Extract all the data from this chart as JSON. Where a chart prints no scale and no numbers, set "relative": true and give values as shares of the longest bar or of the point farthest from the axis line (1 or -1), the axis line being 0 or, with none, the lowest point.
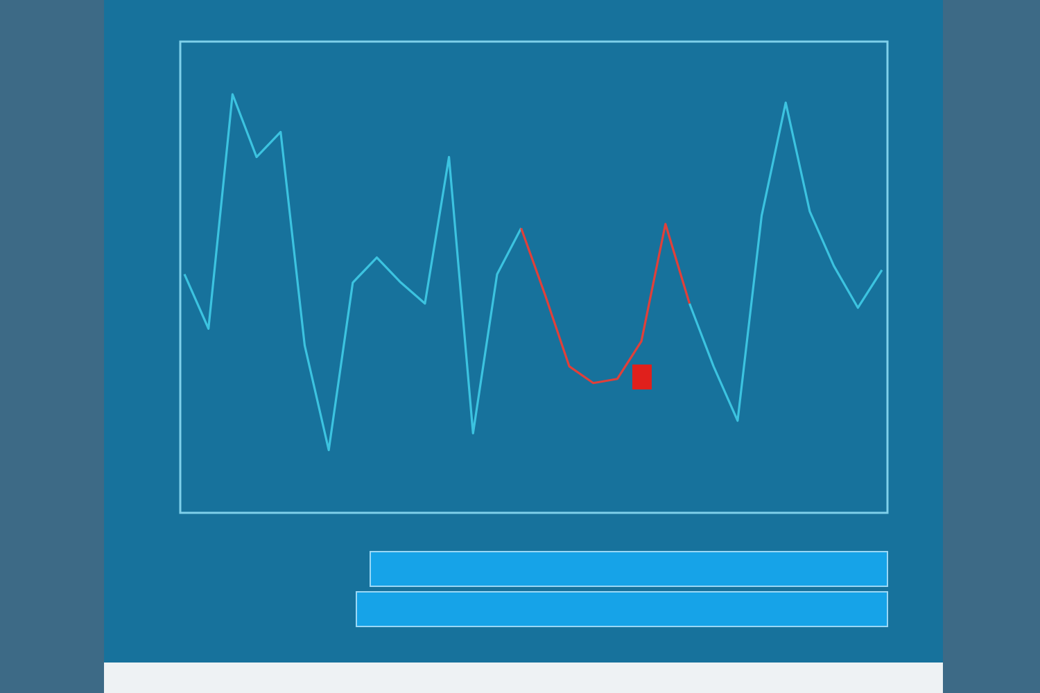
{
  "chart_data": {
    "type": "line",
    "relative": true,
    "categories": [
      null,
      null,
      null,
      null,
      null,
      null,
      null,
      null,
      null,
      null,
      null,
      null,
      null,
      null,
      null,
      null,
      null,
      null,
      null,
      null,
      null,
      null,
      null,
      null,
      null,
      null,
      null,
      null,
      null,
      null
    ],
    "series": [
      {
        "color": "#3cc3e0",
        "values": [
          0.57,
          0.44,
          1.0,
          0.85,
          0.91,
          0.4,
          0.15,
          0.55,
          0.61,
          0.55,
          0.5,
          0.85,
          0.19,
          0.57,
          0.68,
          null,
          null,
          null,
          null,
          null,
          null,
          0.5,
          0.35,
          0.22,
          0.71,
          0.98,
          0.72,
          0.59,
          0.49,
          0.58
        ]
      },
      {
        "color": "#e0403a",
        "values": [
          null,
          null,
          null,
          null,
          null,
          null,
          null,
          null,
          null,
          null,
          null,
          null,
          null,
          null,
          0.68,
          0.52,
          0.35,
          0.31,
          0.32,
          0.41,
          0.69,
          0.5,
          null,
          null,
          null,
          null,
          null,
          null,
          null,
          null
        ]
      }
    ]
  }
}
